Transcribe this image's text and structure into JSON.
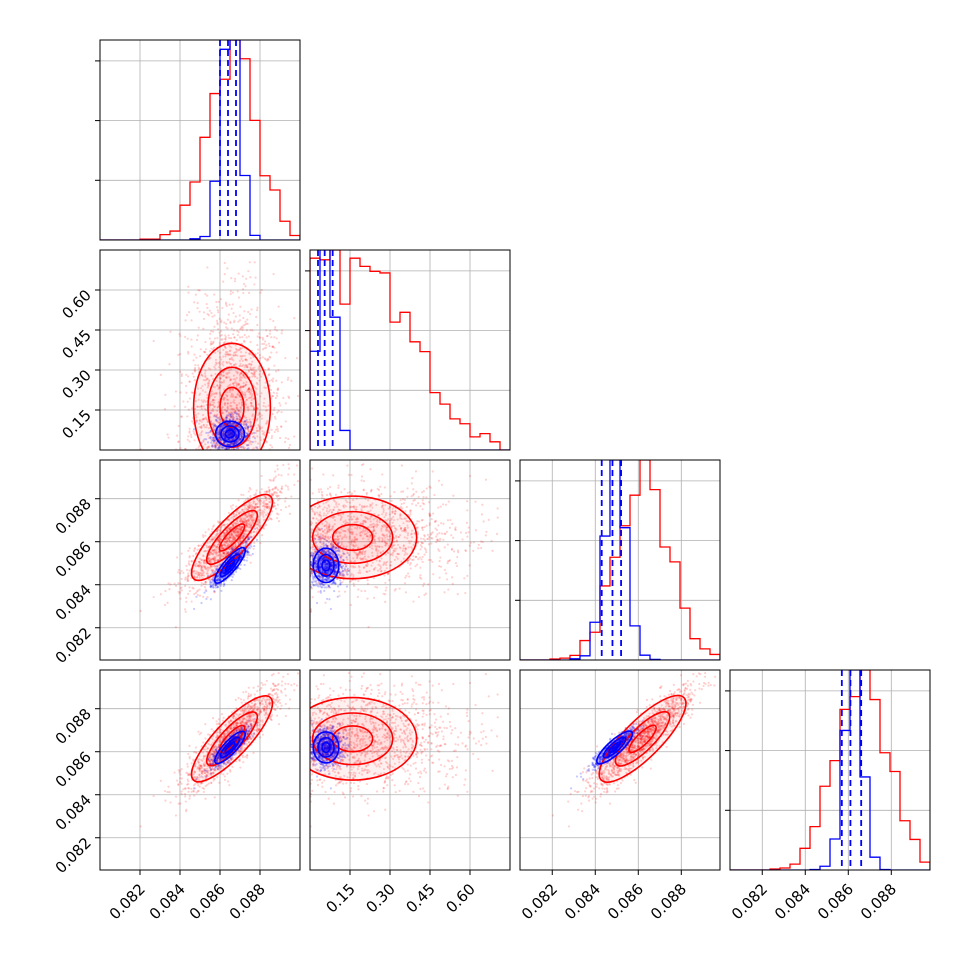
{
  "chart_data": {
    "type": "corner",
    "grid": true,
    "colors": {
      "blue": "#0000ff",
      "red": "#ff0000"
    },
    "series": [
      {
        "color": "blue",
        "mean": [
          0.0865,
          0.06,
          0.0849,
          0.0862
        ],
        "std": [
          0.00045,
          0.03,
          0.0005,
          0.00045
        ],
        "quantiles_16_50_84": [
          [
            0.086,
            0.0864,
            0.0868
          ],
          [
            0.03,
            0.055,
            0.085
          ],
          [
            0.0843,
            0.0848,
            0.0852
          ],
          [
            0.0857,
            0.0861,
            0.0866
          ]
        ]
      },
      {
        "color": "red",
        "mean": [
          0.0866,
          0.16,
          0.0862,
          0.0866
        ],
        "std": [
          0.0012,
          0.15,
          0.0012,
          0.0012
        ]
      }
    ],
    "ranges": [
      [
        0.08,
        0.09
      ],
      [
        0.0,
        0.75
      ],
      [
        0.0805,
        0.0898
      ],
      [
        0.0805,
        0.0898
      ]
    ],
    "ticks": [
      [
        "0.082",
        "0.084",
        "0.086",
        "0.088"
      ],
      [
        "0.15",
        "0.30",
        "0.45",
        "0.60"
      ],
      [
        "0.082",
        "0.084",
        "0.086",
        "0.088"
      ],
      [
        "0.082",
        "0.084",
        "0.086",
        "0.088"
      ]
    ]
  }
}
